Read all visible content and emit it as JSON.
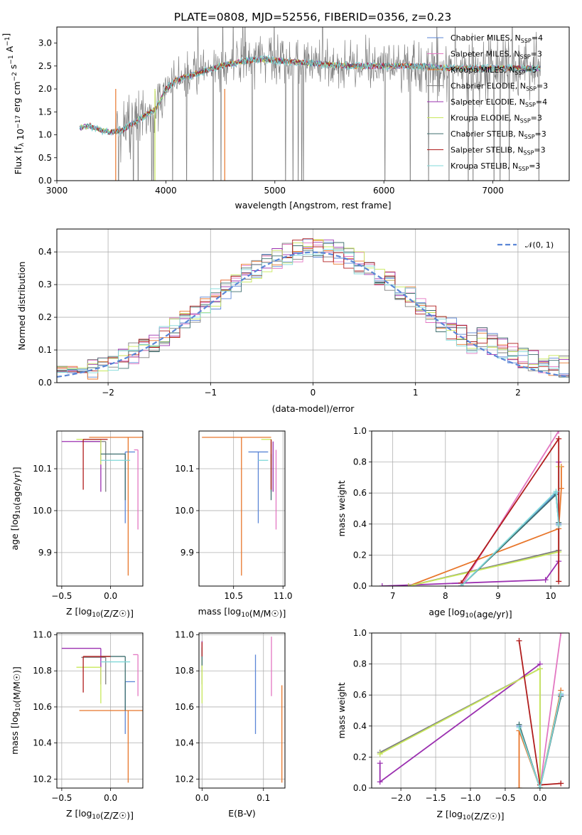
{
  "page": {
    "title": "PLATE=0808, MJD=52556, FIBERID=0356, z=0.23"
  },
  "colors": {
    "Chabrier MILES": "#5b86d6",
    "Salpeter MILES": "#e377c2",
    "Kroupa MILES": "#e8762b",
    "Chabrier ELODIE": "#7f7f7f",
    "Salpeter ELODIE": "#9b30b0",
    "Kroupa ELODIE": "#c8e85a",
    "Chabrier STELIB": "#3f6f6f",
    "Salpeter STELIB": "#b01c1c",
    "Kroupa STELIB": "#7fd8d8",
    "normal": "#5b86d6"
  },
  "chart_data": [
    {
      "id": "spectrum",
      "type": "line",
      "title": "PLATE=0808, MJD=52556, FIBERID=0356, z=0.23",
      "xlabel": "wavelength [Angstrom, rest frame]",
      "ylabel": "Flux [f_λ 10^-17 erg cm^-2 s^-1 A^-1]",
      "xlim": [
        3000,
        7700
      ],
      "ylim": [
        0,
        3.35
      ],
      "xticks": [
        3000,
        4000,
        5000,
        6000,
        7000
      ],
      "yticks": [
        0.0,
        0.5,
        1.0,
        1.5,
        2.0,
        2.5,
        3.0
      ],
      "grid": false,
      "legend_position": "top-right",
      "legend": [
        {
          "label": "Chabrier MILES, N",
          "sub": "SSP",
          "suffix": "=4"
        },
        {
          "label": "Salpeter MILES, N",
          "sub": "SSP",
          "suffix": "=3"
        },
        {
          "label": "Kroupa MILES, N",
          "sub": "SSP",
          "suffix": "=5"
        },
        {
          "label": "Chabrier ELODIE, N",
          "sub": "SSP",
          "suffix": "=3"
        },
        {
          "label": "Salpeter ELODIE, N",
          "sub": "SSP",
          "suffix": "=4"
        },
        {
          "label": "Kroupa ELODIE, N",
          "sub": "SSP",
          "suffix": "=3"
        },
        {
          "label": "Chabrier STELIB, N",
          "sub": "SSP",
          "suffix": "=3"
        },
        {
          "label": "Salpeter STELIB, N",
          "sub": "SSP",
          "suffix": "=3"
        },
        {
          "label": "Kroupa STELIB, N",
          "sub": "SSP",
          "suffix": "=3"
        }
      ],
      "continuum": [
        [
          3210,
          1.15
        ],
        [
          3300,
          1.2
        ],
        [
          3400,
          1.1
        ],
        [
          3500,
          1.05
        ],
        [
          3600,
          1.1
        ],
        [
          3700,
          1.25
        ],
        [
          3800,
          1.4
        ],
        [
          3900,
          1.55
        ],
        [
          3950,
          1.75
        ],
        [
          4000,
          2.0
        ],
        [
          4100,
          2.2
        ],
        [
          4300,
          2.35
        ],
        [
          4500,
          2.5
        ],
        [
          4700,
          2.6
        ],
        [
          4900,
          2.65
        ],
        [
          5100,
          2.6
        ],
        [
          5400,
          2.55
        ],
        [
          5700,
          2.5
        ],
        [
          6000,
          2.5
        ],
        [
          6300,
          2.5
        ],
        [
          6600,
          2.45
        ],
        [
          6900,
          2.45
        ],
        [
          7200,
          2.45
        ],
        [
          7400,
          2.45
        ]
      ]
    },
    {
      "id": "residuals",
      "type": "step",
      "xlabel": "(data-model)/error",
      "ylabel": "Normed distribution",
      "xlim": [
        -2.5,
        2.5
      ],
      "ylim": [
        0,
        0.47
      ],
      "xticks": [
        -2,
        -1,
        0,
        1,
        2
      ],
      "yticks": [
        0.0,
        0.1,
        0.2,
        0.3,
        0.4
      ],
      "grid": true,
      "legend_position": "top-right",
      "legend": [
        {
          "label": "𝒩(0, 1)"
        }
      ],
      "bin_width": 0.1
    },
    {
      "id": "age-vs-Z",
      "type": "errorbar",
      "xlabel": "Z [log10(Z/Z☉)]",
      "ylabel": "age [log10(age/yr)]",
      "xlim": [
        -0.55,
        0.33
      ],
      "ylim": [
        9.82,
        10.19
      ],
      "xticks": [
        -0.5,
        0.0
      ],
      "yticks": [
        9.9,
        10.0,
        10.1
      ],
      "grid": true,
      "points": [
        {
          "model": "Chabrier MILES",
          "x": 0.15,
          "xerr": [
            0.0,
            0.1
          ],
          "y": 10.14,
          "yerr": [
            0.17,
            0.0
          ]
        },
        {
          "model": "Salpeter MILES",
          "x": 0.28,
          "xerr": [
            0.04,
            0.0
          ],
          "y": 10.145,
          "yerr": [
            0.19,
            0.0
          ]
        },
        {
          "model": "Kroupa MILES",
          "x": 0.18,
          "xerr": [
            0.4,
            0.15
          ],
          "y": 10.175,
          "yerr": [
            0.33,
            0.0
          ]
        },
        {
          "model": "Chabrier ELODIE",
          "x": -0.05,
          "xerr": [
            0.25,
            0.0
          ],
          "y": 10.165,
          "yerr": [
            0.12,
            0.0
          ]
        },
        {
          "model": "Salpeter ELODIE",
          "x": -0.1,
          "xerr": [
            0.4,
            0.0
          ],
          "y": 10.165,
          "yerr": [
            0.12,
            0.0
          ]
        },
        {
          "model": "Kroupa ELODIE",
          "x": -0.1,
          "xerr": [
            0.25,
            0.0
          ],
          "y": 10.17,
          "yerr": [
            0.06,
            0.0
          ]
        },
        {
          "model": "Chabrier STELIB",
          "x": 0.15,
          "xerr": [
            0.25,
            0.0
          ],
          "y": 10.135,
          "yerr": [
            0.11,
            0.0
          ]
        },
        {
          "model": "Salpeter STELIB",
          "x": -0.28,
          "xerr": [
            0.0,
            0.25
          ],
          "y": 10.17,
          "yerr": [
            0.12,
            0.0
          ]
        },
        {
          "model": "Kroupa STELIB",
          "x": 0.05,
          "xerr": [
            0.15,
            0.15
          ],
          "y": 10.12,
          "yerr": [
            0.0,
            0.0
          ]
        }
      ]
    },
    {
      "id": "age-vs-mass",
      "type": "errorbar",
      "xlabel": "mass [log10(M/M☉)]",
      "ylabel": "",
      "xlim": [
        10.15,
        11.02
      ],
      "ylim": [
        9.82,
        10.19
      ],
      "xticks": [
        10.5,
        11.0
      ],
      "yticks": [
        9.9,
        10.0,
        10.1
      ],
      "grid": true,
      "points": [
        {
          "model": "Chabrier MILES",
          "x": 10.75,
          "xerr": [
            0.1,
            0.1
          ],
          "y": 10.14,
          "yerr": [
            0.17,
            0.0
          ]
        },
        {
          "model": "Salpeter MILES",
          "x": 10.93,
          "xerr": [
            0.0,
            0.0
          ],
          "y": 10.145,
          "yerr": [
            0.19,
            0.0
          ]
        },
        {
          "model": "Kroupa MILES",
          "x": 10.58,
          "xerr": [
            0.4,
            0.3
          ],
          "y": 10.175,
          "yerr": [
            0.33,
            0.0
          ]
        },
        {
          "model": "Chabrier ELODIE",
          "x": 10.88,
          "xerr": [
            0.0,
            0.0
          ],
          "y": 10.165,
          "yerr": [
            0.12,
            0.0
          ]
        },
        {
          "model": "Salpeter ELODIE",
          "x": 10.9,
          "xerr": [
            0.0,
            0.0
          ],
          "y": 10.165,
          "yerr": [
            0.12,
            0.0
          ]
        },
        {
          "model": "Kroupa ELODIE",
          "x": 10.88,
          "xerr": [
            0.1,
            0.0
          ],
          "y": 10.17,
          "yerr": [
            0.06,
            0.0
          ]
        },
        {
          "model": "Chabrier STELIB",
          "x": 10.88,
          "xerr": [
            0.0,
            0.0
          ],
          "y": 10.135,
          "yerr": [
            0.11,
            0.0
          ]
        },
        {
          "model": "Salpeter STELIB",
          "x": 10.88,
          "xerr": [
            0.0,
            0.0
          ],
          "y": 10.17,
          "yerr": [
            0.12,
            0.0
          ]
        },
        {
          "model": "Kroupa STELIB",
          "x": 10.85,
          "xerr": [
            0.1,
            0.0
          ],
          "y": 10.12,
          "yerr": [
            0.0,
            0.0
          ]
        }
      ]
    },
    {
      "id": "mass-weight-vs-age",
      "type": "line",
      "xlabel": "age [log10(age/yr)]",
      "ylabel": "mass weight",
      "xlim": [
        6.6,
        10.35
      ],
      "ylim": [
        0,
        1.0
      ],
      "xticks": [
        7,
        8,
        9,
        10
      ],
      "yticks": [
        0.0,
        0.2,
        0.4,
        0.6,
        0.8,
        1.0
      ],
      "grid": true,
      "series": [
        {
          "model": "Chabrier MILES",
          "x": [
            8.3,
            10.1,
            10.15
          ],
          "y": [
            0.0,
            0.6,
            0.4
          ]
        },
        {
          "model": "Salpeter MILES",
          "x": [
            8.3,
            10.15
          ],
          "y": [
            0.0,
            1.0
          ]
        },
        {
          "model": "Kroupa MILES",
          "x": [
            7.3,
            10.15,
            10.2,
            10.2
          ],
          "y": [
            0.0,
            0.37,
            0.63,
            0.77
          ]
        },
        {
          "model": "Chabrier ELODIE",
          "x": [
            7.3,
            10.15,
            10.15
          ],
          "y": [
            0.0,
            0.23,
            0.23
          ]
        },
        {
          "model": "Salpeter ELODIE",
          "x": [
            6.8,
            9.9,
            10.15,
            10.15
          ],
          "y": [
            0.0,
            0.04,
            0.16,
            0.8
          ]
        },
        {
          "model": "Kroupa ELODIE",
          "x": [
            7.3,
            10.15,
            10.15
          ],
          "y": [
            0.0,
            0.22,
            0.77
          ]
        },
        {
          "model": "Chabrier STELIB",
          "x": [
            8.3,
            10.1,
            10.15
          ],
          "y": [
            0.0,
            0.59,
            0.41
          ]
        },
        {
          "model": "Salpeter STELIB",
          "x": [
            8.3,
            10.15,
            10.15
          ],
          "y": [
            0.02,
            0.95,
            0.03
          ]
        },
        {
          "model": "Kroupa STELIB",
          "x": [
            8.3,
            10.1,
            10.15
          ],
          "y": [
            0.0,
            0.61,
            0.39
          ]
        }
      ]
    },
    {
      "id": "mass-vs-Z",
      "type": "errorbar",
      "xlabel": "Z [log10(Z/Z☉)]",
      "ylabel": "mass [log10(M/M☉)]",
      "xlim": [
        -0.55,
        0.33
      ],
      "ylim": [
        10.15,
        11.01
      ],
      "xticks": [
        -0.5,
        0.0
      ],
      "yticks": [
        10.2,
        10.4,
        10.6,
        10.8,
        11.0
      ],
      "grid": true,
      "points": [
        {
          "model": "Chabrier MILES",
          "x": 0.15,
          "xerr": [
            0.0,
            0.1
          ],
          "y": 10.74,
          "yerr": [
            0.29,
            0.0
          ]
        },
        {
          "model": "Salpeter MILES",
          "x": 0.28,
          "xerr": [
            0.05,
            0.0
          ],
          "y": 10.89,
          "yerr": [
            0.23,
            0.0
          ]
        },
        {
          "model": "Kroupa MILES",
          "x": 0.18,
          "xerr": [
            0.5,
            0.15
          ],
          "y": 10.58,
          "yerr": [
            0.4,
            0.0
          ]
        },
        {
          "model": "Chabrier ELODIE",
          "x": -0.05,
          "xerr": [
            0.25,
            0.0
          ],
          "y": 10.875,
          "yerr": [
            0.15,
            0.0
          ]
        },
        {
          "model": "Salpeter ELODIE",
          "x": -0.1,
          "xerr": [
            0.4,
            0.0
          ],
          "y": 10.925,
          "yerr": [
            0.2,
            0.0
          ]
        },
        {
          "model": "Kroupa ELODIE",
          "x": -0.1,
          "xerr": [
            0.25,
            0.0
          ],
          "y": 10.82,
          "yerr": [
            0.2,
            0.0
          ]
        },
        {
          "model": "Chabrier STELIB",
          "x": 0.15,
          "xerr": [
            0.25,
            0.0
          ],
          "y": 10.88,
          "yerr": [
            0.3,
            0.0
          ]
        },
        {
          "model": "Salpeter STELIB",
          "x": -0.28,
          "xerr": [
            0.0,
            0.28
          ],
          "y": 10.88,
          "yerr": [
            0.2,
            0.0
          ]
        },
        {
          "model": "Kroupa STELIB",
          "x": 0.05,
          "xerr": [
            0.15,
            0.15
          ],
          "y": 10.85,
          "yerr": [
            0.0,
            0.0
          ]
        }
      ]
    },
    {
      "id": "mass-vs-EBV",
      "type": "errorbar",
      "xlabel": "E(B-V)",
      "ylabel": "",
      "xlim": [
        -0.005,
        0.135
      ],
      "ylim": [
        10.15,
        11.01
      ],
      "xticks": [
        0.0,
        0.1
      ],
      "yticks": [
        10.2,
        10.4,
        10.6,
        10.8,
        11.0
      ],
      "grid": true,
      "points": [
        {
          "model": "Chabrier MILES",
          "x": 0.087,
          "y": 10.74,
          "yerr": [
            0.29,
            0.15
          ]
        },
        {
          "model": "Salpeter MILES",
          "x": 0.113,
          "y": 10.89,
          "yerr": [
            0.23,
            0.1
          ]
        },
        {
          "model": "Kroupa MILES",
          "x": 0.13,
          "y": 10.58,
          "yerr": [
            0.4,
            0.14
          ]
        },
        {
          "model": "Chabrier ELODIE",
          "x": 0.0,
          "y": 10.875,
          "yerr": [
            0.15,
            0.05
          ]
        },
        {
          "model": "Salpeter ELODIE",
          "x": 0.0,
          "y": 10.925,
          "yerr": [
            0.04,
            0.04
          ]
        },
        {
          "model": "Kroupa ELODIE",
          "x": 0.0,
          "y": 10.82,
          "yerr": [
            0.2,
            0.05
          ]
        },
        {
          "model": "Chabrier STELIB",
          "x": 0.0,
          "y": 10.88,
          "yerr": [
            0.05,
            0.05
          ]
        },
        {
          "model": "Salpeter STELIB",
          "x": 0.0,
          "y": 10.88,
          "yerr": [
            0.0,
            0.08
          ]
        },
        {
          "model": "Kroupa STELIB",
          "x": 0.0,
          "y": 10.85,
          "yerr": [
            0.0,
            0.0
          ]
        }
      ]
    },
    {
      "id": "mass-weight-vs-Z",
      "type": "line",
      "xlabel": "Z [log10(Z/Z☉)]",
      "ylabel": "mass weight",
      "xlim": [
        -2.42,
        0.42
      ],
      "ylim": [
        0,
        1.0
      ],
      "xticks": [
        -2.0,
        -1.5,
        -1.0,
        -0.5,
        0.0
      ],
      "yticks": [
        0.0,
        0.2,
        0.4,
        0.6,
        0.8,
        1.0
      ],
      "grid": true,
      "series": [
        {
          "model": "Chabrier MILES",
          "x": [
            -0.3,
            0.0,
            0.3
          ],
          "y": [
            0.4,
            0.0,
            0.6
          ]
        },
        {
          "model": "Salpeter MILES",
          "x": [
            0.0,
            0.3
          ],
          "y": [
            0.0,
            1.0
          ]
        },
        {
          "model": "Kroupa MILES",
          "x": [
            -0.3,
            -0.3,
            0.0,
            0.3
          ],
          "y": [
            0.0,
            0.37,
            0.0,
            0.63
          ]
        },
        {
          "model": "Chabrier ELODIE",
          "x": [
            -2.3,
            0.0,
            0.0
          ],
          "y": [
            0.23,
            0.77,
            0.0
          ]
        },
        {
          "model": "Salpeter ELODIE",
          "x": [
            -2.3,
            -2.3,
            0.0
          ],
          "y": [
            0.16,
            0.04,
            0.8
          ]
        },
        {
          "model": "Kroupa ELODIE",
          "x": [
            -2.3,
            0.0,
            0.0
          ],
          "y": [
            0.22,
            0.77,
            0.0
          ]
        },
        {
          "model": "Chabrier STELIB",
          "x": [
            -0.3,
            0.0,
            0.3
          ],
          "y": [
            0.41,
            0.0,
            0.59
          ]
        },
        {
          "model": "Salpeter STELIB",
          "x": [
            -0.3,
            0.0,
            0.3
          ],
          "y": [
            0.95,
            0.02,
            0.03
          ]
        },
        {
          "model": "Kroupa STELIB",
          "x": [
            -0.3,
            0.0,
            0.3
          ],
          "y": [
            0.39,
            0.0,
            0.61
          ]
        }
      ]
    }
  ]
}
